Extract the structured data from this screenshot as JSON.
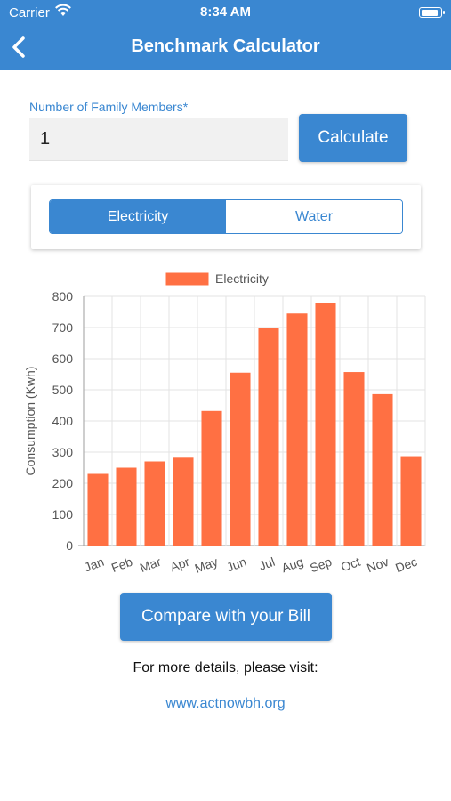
{
  "status": {
    "carrier": "Carrier",
    "time": "8:34 AM"
  },
  "nav": {
    "title": "Benchmark Calculator"
  },
  "form": {
    "members_label": "Number of Family Members*",
    "members_value": "1",
    "calculate_label": "Calculate"
  },
  "segment": {
    "options": [
      {
        "label": "Electricity",
        "selected": true
      },
      {
        "label": "Water",
        "selected": false
      }
    ]
  },
  "chart_data": {
    "type": "bar",
    "categories": [
      "Jan",
      "Feb",
      "Mar",
      "Apr",
      "May",
      "Jun",
      "Jul",
      "Aug",
      "Sep",
      "Oct",
      "Nov",
      "Dec"
    ],
    "series": [
      {
        "name": "Electricity",
        "values": [
          230,
          250,
          270,
          282,
          432,
          555,
          700,
          745,
          778,
          557,
          486,
          287
        ]
      }
    ],
    "xlabel": "",
    "ylabel": "Consumption (Kwh)",
    "ylim": [
      0,
      800
    ],
    "yticks": [
      0,
      100,
      200,
      300,
      400,
      500,
      600,
      700,
      800
    ],
    "grid": true,
    "legend_position": "top-center",
    "colors": {
      "bar": "#ff7043",
      "grid": "#e3e3e3",
      "axis": "#9e9e9e"
    }
  },
  "footer": {
    "compare_label": "Compare with your Bill",
    "details_text": "For more details, please visit:",
    "link_text": "www.actnowbh.org"
  },
  "colors": {
    "primary": "#3a87d1",
    "bar": "#ff7043"
  }
}
